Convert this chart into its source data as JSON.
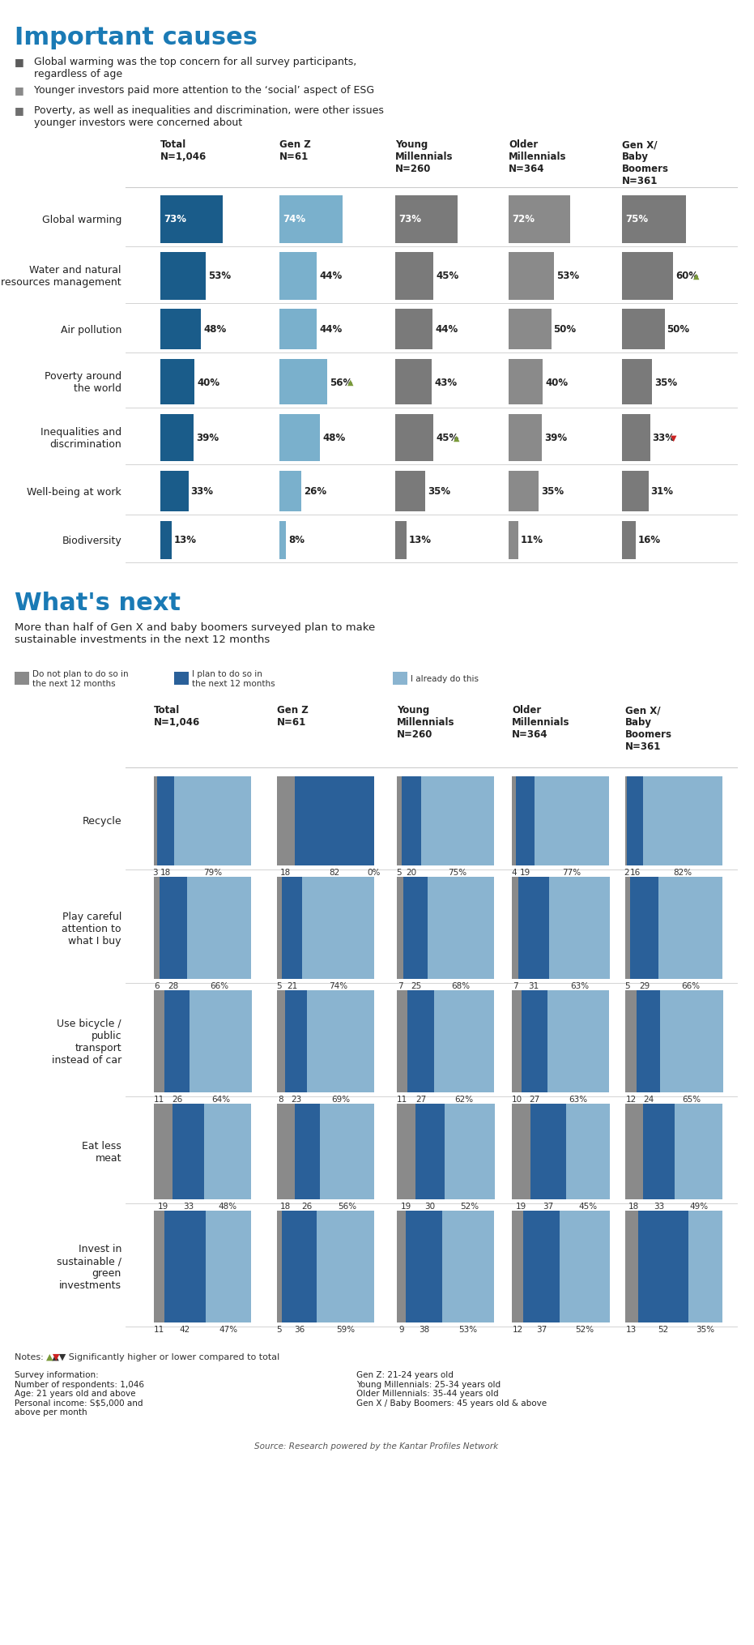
{
  "title1": "Important causes",
  "bullets1": [
    "Global warming was the top concern for all survey participants,\nregardless of age",
    "Younger investors paid more attention to the ‘social’ aspect of ESG",
    "Poverty, as well as inequalities and discrimination, were other issues\nyounger investors were concerned about"
  ],
  "bullet_colors1": [
    "#5b5b5b",
    "#8a8a8a",
    "#6e6e6e"
  ],
  "col_headers": [
    "Total\nN=1,046",
    "Gen Z\nN=61",
    "Young\nMillennials\nN=260",
    "Older\nMillennials\nN=364",
    "Gen X/\nBaby\nBoomers\nN=361"
  ],
  "row_labels1": [
    "Global warming",
    "Water and natural\nresources management",
    "Air pollution",
    "Poverty around\nthe world",
    "Inequalities and\ndiscrimination",
    "Well-being at work",
    "Biodiversity"
  ],
  "values1": [
    [
      73,
      74,
      73,
      72,
      75
    ],
    [
      53,
      44,
      45,
      53,
      60
    ],
    [
      48,
      44,
      44,
      50,
      50
    ],
    [
      40,
      56,
      43,
      40,
      35
    ],
    [
      39,
      48,
      45,
      39,
      33
    ],
    [
      33,
      26,
      35,
      35,
      31
    ],
    [
      13,
      8,
      13,
      11,
      16
    ]
  ],
  "markers1": [
    [
      null,
      null,
      null,
      null,
      null
    ],
    [
      null,
      null,
      null,
      null,
      "up"
    ],
    [
      null,
      null,
      null,
      null,
      null
    ],
    [
      null,
      "up",
      null,
      null,
      null
    ],
    [
      null,
      null,
      "up",
      null,
      "down"
    ],
    [
      null,
      null,
      null,
      null,
      null
    ],
    [
      null,
      null,
      null,
      null,
      null
    ]
  ],
  "title2": "What's next",
  "subtitle2": "More than half of Gen X and baby boomers surveyed plan to make\nsustainable investments in the next 12 months",
  "legend2": [
    "Do not plan to do so in\nthe next 12 months",
    "I plan to do so in\nthe next 12 months",
    "I already do this"
  ],
  "legend2_colors": [
    "#8a8a8a",
    "#2a6099",
    "#8ab4d0"
  ],
  "row_labels2": [
    "Recycle",
    "Play careful\nattention to\nwhat I buy",
    "Use bicycle /\npublic\ntransport\ninstead of car",
    "Eat less\nmeat",
    "Invest in\nsustainable /\ngreen\ninvestments"
  ],
  "all_no": [
    [
      3,
      6,
      11,
      19,
      11
    ],
    [
      18,
      5,
      8,
      18,
      5
    ],
    [
      5,
      7,
      11,
      19,
      9
    ],
    [
      4,
      7,
      10,
      19,
      12
    ],
    [
      2,
      5,
      12,
      18,
      13
    ]
  ],
  "all_plan": [
    [
      18,
      28,
      26,
      33,
      42
    ],
    [
      82,
      21,
      23,
      26,
      36
    ],
    [
      20,
      25,
      27,
      30,
      38
    ],
    [
      19,
      31,
      27,
      37,
      37
    ],
    [
      16,
      29,
      24,
      33,
      52
    ]
  ],
  "all_already": [
    [
      79,
      66,
      64,
      48,
      47
    ],
    [
      0,
      74,
      69,
      56,
      59
    ],
    [
      75,
      68,
      62,
      52,
      53
    ],
    [
      77,
      63,
      63,
      45,
      52
    ],
    [
      82,
      66,
      65,
      49,
      35
    ]
  ],
  "color_dark_blue": "#1a5c8a",
  "color_light_blue": "#7ab0cc",
  "color_dark_gray": "#7a7a7a",
  "color_mid_gray": "#8a8a8a",
  "color_bar_plan": "#2a6099",
  "color_bar_already": "#8ab4d0",
  "color_bar_no": "#8a8a8a",
  "background": "#ffffff",
  "title_color": "#1a7ab5",
  "notes": "Notes:   ▲▼ Significantly higher or lower compared to total",
  "survey_info": "Survey information:\nNumber of respondents: 1,046\nAge: 21 years old and above\nPersonal income: S$5,000 and\nabove per month",
  "survey_info2": "Gen Z: 21-24 years old\nYoung Millennials: 25-34 years old\nOlder Millennials: 35-44 years old\nGen X / Baby Boomers: 45 years old & above",
  "source": "Source: Research powered by the Kantar Profiles Network"
}
